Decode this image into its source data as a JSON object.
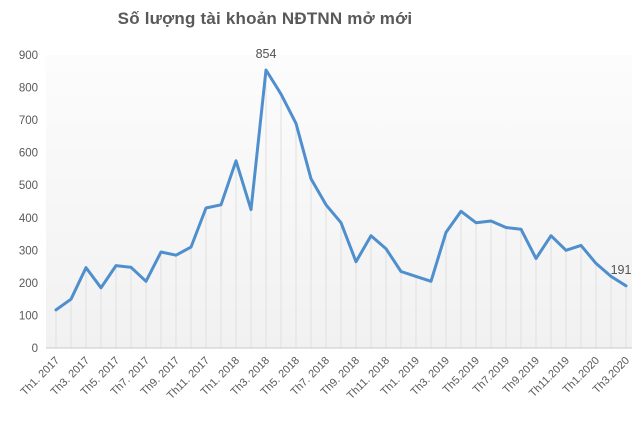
{
  "title": "Số lượng tài khoản NĐTNN mở mới",
  "colors": {
    "series_line": "#4f8fce",
    "title_text": "#595959",
    "tick_label_text": "#595959",
    "annotation_text": "#525252",
    "drop_line": "#e0e0e0",
    "axis_line": "#c9c9c9",
    "plot_bg_top": "rgba(0,0,0,0.012)",
    "plot_bg_bottom": "rgba(0,0,0,0.055)"
  },
  "chart_data": {
    "type": "line",
    "title": "Số lượng tài khoản NĐTNN mở mới",
    "xlabel": "",
    "ylabel": "",
    "ylim": [
      0,
      900
    ],
    "y_ticks": [
      0,
      100,
      200,
      300,
      400,
      500,
      600,
      700,
      800,
      900
    ],
    "grid": "vertical-drop-lines",
    "legend": "none",
    "categories": [
      "Th1.2017",
      "Th2.2017",
      "Th3.2017",
      "Th4.2017",
      "Th5.2017",
      "Th6.2017",
      "Th7.2017",
      "Th8.2017",
      "Th9.2017",
      "Th10.2017",
      "Th11.2017",
      "Th12.2017",
      "Th1.2018",
      "Th2.2018",
      "Th3.2018",
      "Th4.2018",
      "Th5.2018",
      "Th6.2018",
      "Th7.2018",
      "Th8.2018",
      "Th9.2018",
      "Th10.2018",
      "Th11.2018",
      "Th12.2018",
      "Th1.2019",
      "Th2.2019",
      "Th3.2019",
      "Th4.2019",
      "Th5.2019",
      "Th6.2019",
      "Th7.2019",
      "Th8.2019",
      "Th9.2019",
      "Th10.2019",
      "Th11.2019",
      "Th12.2019",
      "Th1.2020",
      "Th2.2020",
      "Th3.2020"
    ],
    "values": [
      117,
      150,
      247,
      185,
      253,
      248,
      205,
      295,
      285,
      310,
      430,
      440,
      575,
      425,
      854,
      780,
      690,
      520,
      440,
      385,
      265,
      345,
      305,
      235,
      220,
      205,
      355,
      420,
      385,
      390,
      370,
      365,
      275,
      345,
      300,
      315,
      260,
      220,
      191
    ],
    "x_tick_labels": [
      "Th1. 2017",
      "Th3. 2017",
      "Th5. 2017",
      "Th7. 2017",
      "Th9. 2017",
      "Th11. 2017",
      "Th1. 2018",
      "Th3. 2018",
      "Th5. 2018",
      "Th7. 2018",
      "Th9. 2018",
      "Th11. 2018",
      "Th1. 2019",
      "Th3. 2019",
      "Th5.2019",
      "Th7.2019",
      "Th9.2019",
      "Th11.2019",
      "Th1.2020",
      "Th3.2020"
    ],
    "x_tick_every": 2,
    "annotations": [
      {
        "index": 14,
        "text": "854"
      },
      {
        "index": 38,
        "text": "191"
      }
    ]
  }
}
